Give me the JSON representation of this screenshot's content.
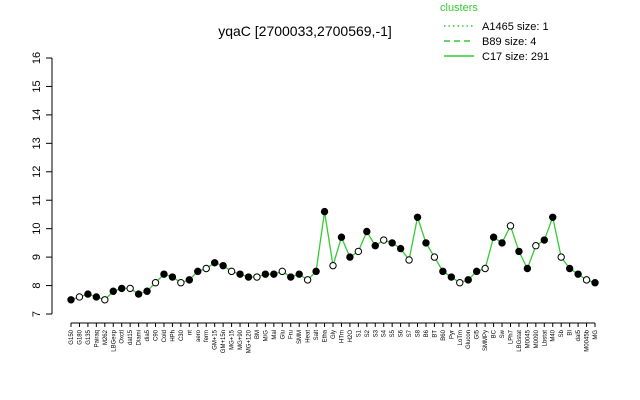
{
  "chart_data": {
    "type": "line",
    "title": "yqaC [2700033,2700569,-1]",
    "xlabel": "",
    "ylabel": "",
    "ylim": [
      7,
      16
    ],
    "yticks": [
      7,
      8,
      9,
      10,
      11,
      12,
      13,
      14,
      15,
      16
    ],
    "grid": false,
    "legend_position": "top-right",
    "legend_title": "clusters",
    "legend": [
      {
        "label": "A1465 size: 1",
        "style": "dotted"
      },
      {
        "label": "B89 size: 4",
        "style": "dashed"
      },
      {
        "label": "C17 size: 291",
        "style": "solid"
      }
    ],
    "color": "#33cc33",
    "categories": [
      "G150",
      "G180",
      "G135",
      "Pairaq",
      "M262",
      "LBGexp",
      "Oxctl",
      "dat15",
      "Diami",
      "dia5",
      "C90",
      "Cold",
      "HPh",
      "C30",
      "nt",
      "aero",
      "ferm",
      "GM+15",
      "GM+15n",
      "MG+15",
      "MG+90",
      "MG+120",
      "BM",
      "M/G",
      "Mal",
      "Glu",
      "Fru",
      "SMM",
      "Heat",
      "Salt",
      "Etha",
      "Gly",
      "HTm",
      "H2O",
      "S1",
      "S2",
      "S3",
      "S4",
      "S5",
      "S6",
      "S7",
      "S8",
      "B6",
      "BT",
      "B60",
      "Pyr",
      "LoTm",
      "Glucon",
      "Gl5",
      "SMMPy",
      "BC",
      "Sw",
      "LPh7",
      "LBGstat",
      "M0045",
      "M0090",
      "Lbstat",
      "M40",
      "Sb",
      "BI",
      "dal5",
      "M0045b",
      "MG"
    ],
    "series": [
      {
        "values": [
          7.5,
          7.6,
          7.7,
          7.6,
          7.5,
          7.8,
          7.9,
          7.9,
          7.7,
          7.8,
          8.1,
          8.4,
          8.3,
          8.1,
          8.2,
          8.5,
          8.6,
          8.8,
          8.7,
          8.5,
          8.4,
          8.3,
          8.3,
          8.4,
          8.4,
          8.5,
          8.3,
          8.4,
          8.2,
          8.5,
          10.6,
          8.7,
          9.7,
          9.0,
          9.2,
          9.9,
          9.4,
          9.6,
          9.5,
          9.3,
          8.9,
          10.4,
          9.5,
          9.0,
          8.5,
          8.3,
          8.1,
          8.2,
          8.5,
          8.6,
          9.7,
          9.5,
          10.1,
          9.2,
          8.6,
          9.4,
          9.6,
          10.4,
          9.0,
          8.6,
          8.4,
          8.2,
          8.1
        ]
      }
    ]
  }
}
